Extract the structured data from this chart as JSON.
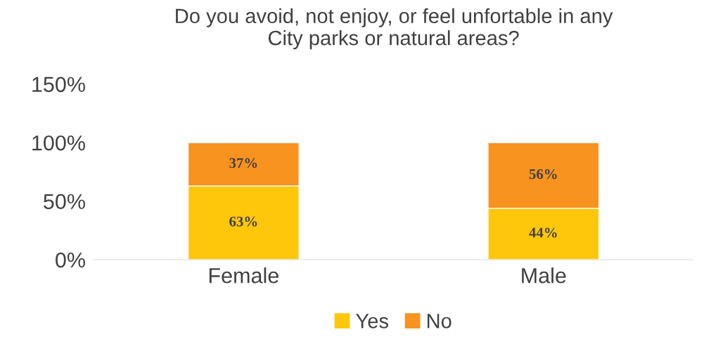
{
  "chart_data": {
    "type": "bar",
    "stacked": true,
    "title": "Do you avoid, not enjoy, or feel unfortable in any\nCity parks or natural areas?",
    "categories": [
      "Female",
      "Male"
    ],
    "series": [
      {
        "name": "Yes",
        "color": "#fec70a",
        "values": [
          63,
          44
        ],
        "value_labels": [
          "63%",
          "44%"
        ]
      },
      {
        "name": "No",
        "color": "#f7931e",
        "values": [
          37,
          56
        ],
        "value_labels": [
          "37%",
          "56%"
        ]
      }
    ],
    "ylim": [
      0,
      150
    ],
    "yticks": [
      {
        "value": 0,
        "label": "0%"
      },
      {
        "value": 50,
        "label": "50%"
      },
      {
        "value": 100,
        "label": "100%"
      },
      {
        "value": 150,
        "label": "150%"
      }
    ],
    "grid": false,
    "legend": "bottom"
  }
}
